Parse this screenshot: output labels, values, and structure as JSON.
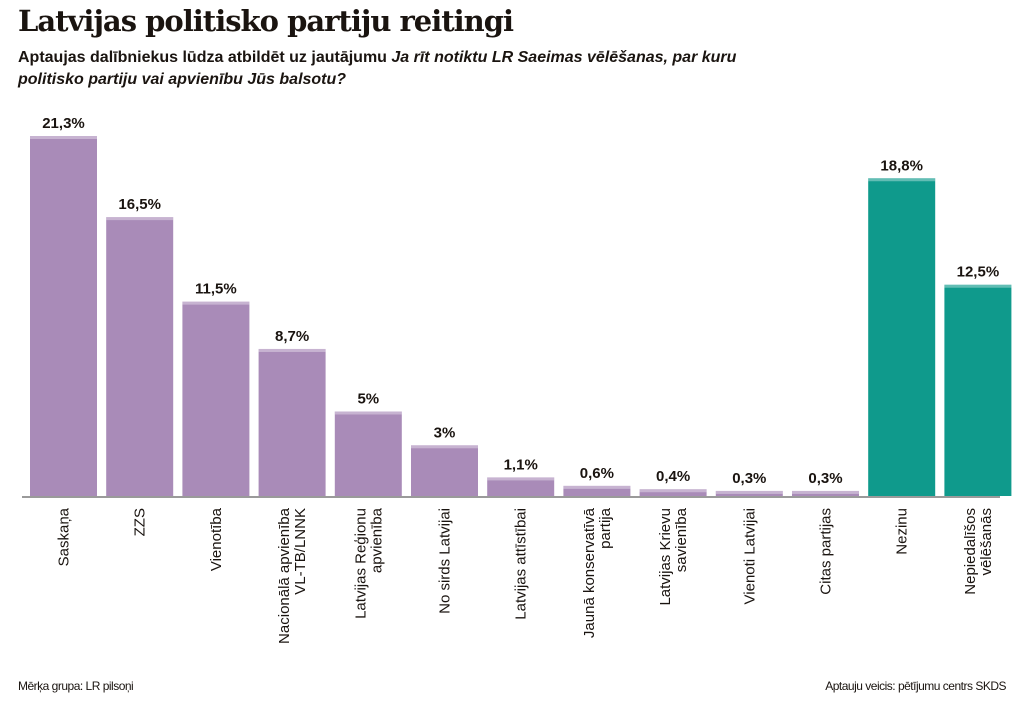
{
  "title": "Latvijas politisko partiju reitingi",
  "subtitle": {
    "plain": "Aptaujas dalībniekus lūdza atbildēt uz jautājumu ",
    "question": "Ja rīt notiktu LR Saeimas vēlēšanas, par kuru politisko partiju vai apvienību Jūs balsotu?"
  },
  "footer": {
    "left": "Mērķa grupa: LR pilsoņi",
    "right": "Aptauju veicis: pētījumu centrs SKDS"
  },
  "colors": {
    "party": "#a98bb8",
    "other": "#0f9a8c"
  },
  "chart_data": {
    "type": "bar",
    "categories": [
      [
        "Saskaņa"
      ],
      [
        "ZZS"
      ],
      [
        "Vienotība"
      ],
      [
        "Nacionālā apvienība",
        "VL-TB/LNNK"
      ],
      [
        "Latvijas Reģionu",
        "apvienība"
      ],
      [
        "No sirds Latvijai"
      ],
      [
        "Latvijas attīstībai"
      ],
      [
        "Jaunā konservatīvā",
        "partija"
      ],
      [
        "Latvijas Krievu",
        "savienība"
      ],
      [
        "Vienoti Latvijai"
      ],
      [
        "Citas partijas"
      ],
      [
        "Nezinu"
      ],
      [
        "Nepiedalīšos",
        "vēlēšanās"
      ]
    ],
    "values": [
      21.3,
      16.5,
      11.5,
      8.7,
      5,
      3,
      1.1,
      0.6,
      0.4,
      0.3,
      0.3,
      18.8,
      12.5
    ],
    "data_labels": [
      "21,3%",
      "16,5%",
      "11,5%",
      "8,7%",
      "5%",
      "3%",
      "1,1%",
      "0,6%",
      "0,4%",
      "0,3%",
      "0,3%",
      "18,8%",
      "12,5%"
    ],
    "bar_color_group": [
      "party",
      "party",
      "party",
      "party",
      "party",
      "party",
      "party",
      "party",
      "party",
      "party",
      "party",
      "other",
      "other"
    ],
    "unit": "%",
    "ylim": [
      0,
      21.3
    ],
    "grid": false
  }
}
